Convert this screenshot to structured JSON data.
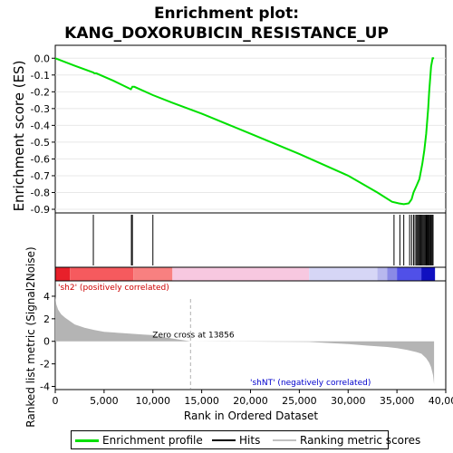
{
  "chart_data": [
    {
      "type": "line",
      "title_line1": "Enrichment plot:",
      "title_line2": "KANG_DOXORUBICIN_RESISTANCE_UP",
      "ylabel": "Enrichment score (ES)",
      "ylim": [
        -0.9,
        0.05
      ],
      "yticks": [
        "0.0",
        "-0.1",
        "-0.2",
        "-0.3",
        "-0.4",
        "-0.5",
        "-0.6",
        "-0.7",
        "-0.8",
        "-0.9"
      ],
      "ytick_values": [
        0.0,
        -0.1,
        -0.2,
        -0.3,
        -0.4,
        -0.5,
        -0.6,
        -0.7,
        -0.8,
        -0.9
      ],
      "xlim": [
        0,
        40000
      ],
      "line_color": "#00e000",
      "series": [
        {
          "name": "Enrichment profile",
          "x": [
            0,
            2000,
            3900,
            4000,
            4200,
            6000,
            7750,
            7900,
            8100,
            10000,
            12000,
            15000,
            20000,
            25000,
            30000,
            33000,
            34500,
            35200,
            35700,
            36200,
            36500,
            36700,
            37000,
            37300,
            37600,
            37800,
            38000,
            38200,
            38300,
            38500,
            38650,
            38800
          ],
          "y": [
            0.0,
            -0.045,
            -0.085,
            -0.09,
            -0.09,
            -0.135,
            -0.185,
            -0.17,
            -0.17,
            -0.22,
            -0.265,
            -0.33,
            -0.45,
            -0.57,
            -0.7,
            -0.8,
            -0.855,
            -0.865,
            -0.87,
            -0.865,
            -0.84,
            -0.8,
            -0.76,
            -0.72,
            -0.63,
            -0.55,
            -0.45,
            -0.3,
            -0.2,
            -0.05,
            0.0,
            0.0
          ]
        }
      ]
    },
    {
      "type": "hits",
      "legend_label": "Hits",
      "hit_positions": [
        3900,
        7800,
        7900,
        10000,
        34700,
        35300,
        35700,
        36300,
        36500,
        36700,
        36850,
        37000,
        37100,
        37200,
        37300,
        37400,
        37500,
        37600,
        37700,
        37800,
        37900,
        38000,
        38050,
        38100,
        38200,
        38250,
        38300,
        38400,
        38450,
        38500,
        38600,
        38700
      ]
    },
    {
      "type": "heatmap",
      "segments": [
        {
          "from": 0,
          "to": 1500,
          "color": "#e8202a"
        },
        {
          "from": 1500,
          "to": 8000,
          "color": "#f65a5e"
        },
        {
          "from": 8000,
          "to": 12000,
          "color": "#f88080"
        },
        {
          "from": 12000,
          "to": 26000,
          "color": "#f7c8e0"
        },
        {
          "from": 26000,
          "to": 33000,
          "color": "#d6d6f6"
        },
        {
          "from": 33000,
          "to": 34000,
          "color": "#b8b8ee"
        },
        {
          "from": 34000,
          "to": 35000,
          "color": "#8a8ae6"
        },
        {
          "from": 35000,
          "to": 37500,
          "color": "#5050e8"
        },
        {
          "from": 37500,
          "to": 38900,
          "color": "#1010c0"
        }
      ]
    },
    {
      "type": "area",
      "ylabel": "Ranked list metric (Signal2Noise)",
      "xlabel": "Rank in Ordered Dataset",
      "ylim": [
        -4.2,
        4.8
      ],
      "yticks": [
        "4",
        "2",
        "0",
        "-2",
        "-4"
      ],
      "ytick_values": [
        4,
        2,
        0,
        -2,
        -4
      ],
      "xlim": [
        0,
        40000
      ],
      "xticks": [
        "0",
        "5,000",
        "10,000",
        "15,000",
        "20,000",
        "25,000",
        "30,000",
        "35,000",
        "40,000"
      ],
      "xtick_values": [
        0,
        5000,
        10000,
        15000,
        20000,
        25000,
        30000,
        35000,
        40000
      ],
      "fill_color": "#b4b4b4",
      "x": [
        0,
        100,
        300,
        600,
        1000,
        2000,
        3000,
        4000,
        5000,
        7000,
        9000,
        10000,
        10500,
        13856,
        26000,
        28000,
        30000,
        32000,
        34000,
        35000,
        36000,
        37000,
        37500,
        38000,
        38300,
        38500,
        38700,
        38800
      ],
      "y": [
        4.0,
        3.3,
        2.8,
        2.4,
        2.1,
        1.5,
        1.2,
        1.0,
        0.85,
        0.72,
        0.6,
        0.55,
        0.45,
        0.0,
        -0.05,
        -0.15,
        -0.25,
        -0.38,
        -0.5,
        -0.6,
        -0.75,
        -0.95,
        -1.1,
        -1.5,
        -1.9,
        -2.3,
        -3.0,
        -3.8
      ],
      "zero_cross": 13856,
      "zero_cross_label": "Zero cross at 13856",
      "pos_label": "'sh2' (positively correlated)",
      "neg_label": "'shNT' (negatively correlated)",
      "pos_color": "#cc0000",
      "neg_color": "#0000cc"
    }
  ],
  "legend": {
    "items": [
      {
        "label": "Enrichment profile",
        "color": "#00e000"
      },
      {
        "label": "Hits",
        "color": "#000000"
      },
      {
        "label": "Ranking metric scores",
        "color": "#c0c0c0"
      }
    ]
  }
}
